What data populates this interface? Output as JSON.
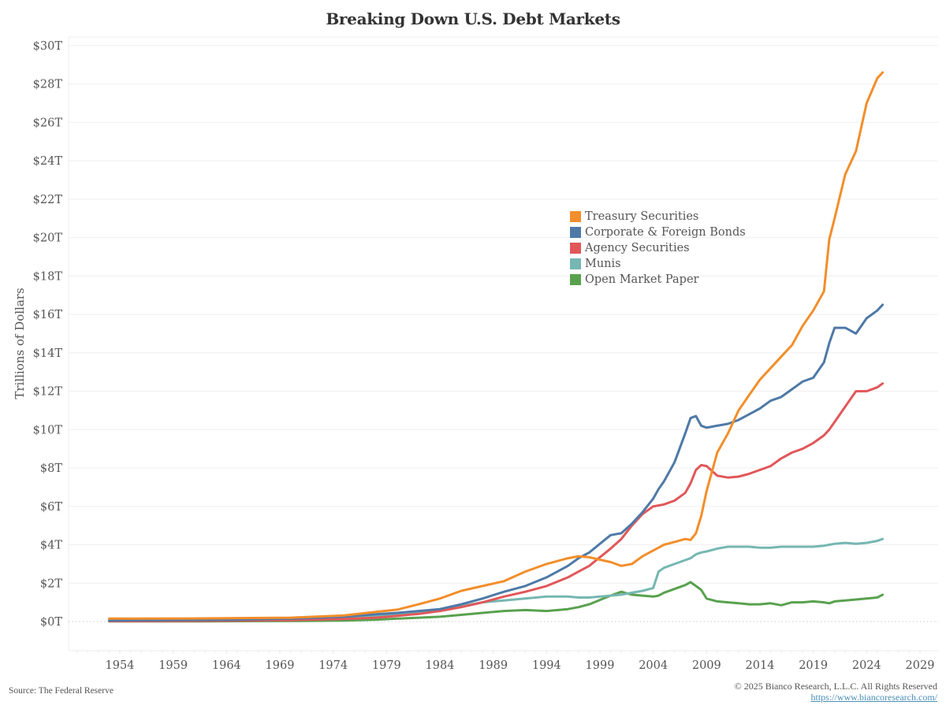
{
  "chart_data": {
    "type": "line",
    "title": "Breaking Down U.S. Debt Markets",
    "xlabel": "",
    "ylabel": "Trillions of Dollars",
    "xlim": [
      1949,
      2030
    ],
    "ylim": [
      -1.5,
      30.5
    ],
    "x_ticks": [
      1954,
      1959,
      1964,
      1969,
      1974,
      1979,
      1984,
      1989,
      1994,
      1999,
      2004,
      2009,
      2014,
      2019,
      2024,
      2029
    ],
    "y_ticks": [
      0,
      2,
      4,
      6,
      8,
      10,
      12,
      14,
      16,
      18,
      20,
      22,
      24,
      26,
      28,
      30
    ],
    "y_tick_labels": [
      "$0T",
      "$2T",
      "$4T",
      "$6T",
      "$8T",
      "$10T",
      "$12T",
      "$14T",
      "$16T",
      "$18T",
      "$20T",
      "$22T",
      "$24T",
      "$26T",
      "$28T",
      "$30T"
    ],
    "grid": true,
    "zero_line": "dotted",
    "legend_position": "center-right",
    "x": [
      1953,
      1955,
      1960,
      1965,
      1970,
      1975,
      1978,
      1980,
      1982,
      1984,
      1986,
      1988,
      1990,
      1992,
      1994,
      1996,
      1997,
      1998,
      2000,
      2001,
      2002,
      2003,
      2004,
      2004.5,
      2005,
      2006,
      2007,
      2007.5,
      2008,
      2008.5,
      2009,
      2010,
      2011,
      2012,
      2013,
      2014,
      2015,
      2016,
      2017,
      2018,
      2019,
      2020,
      2020.5,
      2021,
      2022,
      2023,
      2024,
      2025,
      2025.5
    ],
    "series": [
      {
        "name": "Treasury Securities",
        "color": "#f28e2b",
        "values": [
          0.15,
          0.15,
          0.16,
          0.18,
          0.2,
          0.32,
          0.5,
          0.62,
          0.9,
          1.2,
          1.6,
          1.85,
          2.1,
          2.6,
          3.0,
          3.3,
          3.4,
          3.35,
          3.1,
          2.9,
          3.0,
          3.4,
          3.7,
          3.85,
          4.0,
          4.15,
          4.3,
          4.25,
          4.6,
          5.5,
          6.8,
          8.8,
          9.8,
          11.0,
          11.8,
          12.6,
          13.2,
          13.8,
          14.4,
          15.4,
          16.2,
          17.2,
          19.9,
          21.0,
          23.3,
          24.5,
          27.0,
          28.3,
          28.6
        ]
      },
      {
        "name": "Corporate & Foreign Bonds",
        "color": "#4e79a7",
        "values": [
          0.05,
          0.06,
          0.08,
          0.1,
          0.15,
          0.25,
          0.38,
          0.45,
          0.55,
          0.65,
          0.9,
          1.2,
          1.55,
          1.85,
          2.3,
          2.9,
          3.3,
          3.6,
          4.5,
          4.6,
          5.1,
          5.7,
          6.4,
          6.9,
          7.3,
          8.3,
          9.8,
          10.6,
          10.7,
          10.2,
          10.1,
          10.2,
          10.3,
          10.5,
          10.8,
          11.1,
          11.5,
          11.7,
          12.1,
          12.5,
          12.7,
          13.5,
          14.5,
          15.3,
          15.3,
          15.0,
          15.8,
          16.2,
          16.5
        ]
      },
      {
        "name": "Agency Securities",
        "color": "#e15759",
        "values": [
          0.02,
          0.02,
          0.03,
          0.05,
          0.08,
          0.13,
          0.2,
          0.3,
          0.4,
          0.55,
          0.75,
          1.0,
          1.3,
          1.55,
          1.85,
          2.3,
          2.6,
          2.9,
          3.8,
          4.3,
          5.0,
          5.6,
          6.0,
          6.05,
          6.1,
          6.3,
          6.7,
          7.2,
          7.9,
          8.15,
          8.1,
          7.6,
          7.5,
          7.55,
          7.7,
          7.9,
          8.1,
          8.5,
          8.8,
          9.0,
          9.3,
          9.7,
          10.0,
          10.4,
          11.2,
          12.0,
          12.0,
          12.2,
          12.4
        ]
      },
      {
        "name": "Munis",
        "color": "#76b7b2",
        "values": [
          0.03,
          0.04,
          0.06,
          0.1,
          0.14,
          0.22,
          0.3,
          0.4,
          0.5,
          0.6,
          0.8,
          1.0,
          1.1,
          1.2,
          1.3,
          1.3,
          1.25,
          1.25,
          1.35,
          1.4,
          1.5,
          1.6,
          1.75,
          2.6,
          2.8,
          3.0,
          3.2,
          3.3,
          3.5,
          3.6,
          3.65,
          3.8,
          3.9,
          3.9,
          3.9,
          3.85,
          3.85,
          3.9,
          3.9,
          3.9,
          3.9,
          3.95,
          4.0,
          4.05,
          4.1,
          4.05,
          4.1,
          4.2,
          4.3
        ]
      },
      {
        "name": "Open Market Paper",
        "color": "#59a14f",
        "values": [
          0.01,
          0.01,
          0.01,
          0.02,
          0.03,
          0.05,
          0.1,
          0.15,
          0.2,
          0.25,
          0.35,
          0.45,
          0.55,
          0.6,
          0.55,
          0.65,
          0.75,
          0.9,
          1.35,
          1.55,
          1.4,
          1.35,
          1.3,
          1.35,
          1.5,
          1.7,
          1.9,
          2.05,
          1.85,
          1.65,
          1.2,
          1.05,
          1.0,
          0.95,
          0.9,
          0.9,
          0.95,
          0.85,
          1.0,
          1.0,
          1.05,
          1.0,
          0.95,
          1.05,
          1.1,
          1.15,
          1.2,
          1.25,
          1.4
        ]
      }
    ]
  },
  "footer": {
    "source": "Source: The Federal Reserve",
    "copyright": "© 2025 Bianco Research, L.L.C. All Rights Reserved",
    "url": "https://www.biancoresearch.com/"
  }
}
